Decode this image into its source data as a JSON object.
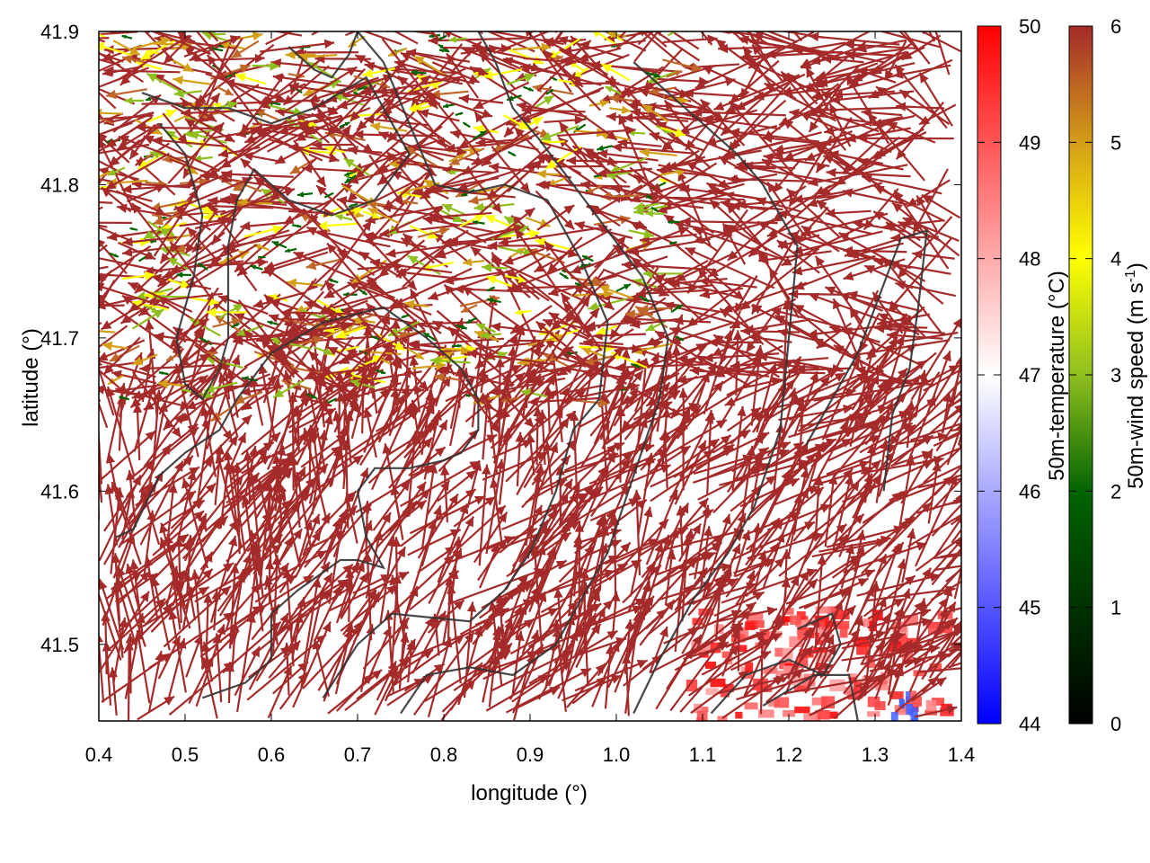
{
  "chart_data": {
    "type": "vector-field",
    "xlabel": "longitude (°)",
    "ylabel": "latitude (°)",
    "xlim": [
      0.4,
      1.4
    ],
    "ylim": [
      41.45,
      41.9
    ],
    "xticks": [
      "0.4",
      "0.5",
      "0.6",
      "0.7",
      "0.8",
      "0.9",
      "1.0",
      "1.1",
      "1.2",
      "1.3",
      "1.4"
    ],
    "yticks": [
      "41.5",
      "41.6",
      "41.7",
      "41.8",
      "41.9"
    ],
    "grid": false,
    "colorbars": [
      {
        "label": "50m-temperature (°C)",
        "range": [
          44,
          50
        ],
        "ticks": [
          "44",
          "45",
          "46",
          "47",
          "48",
          "49",
          "50"
        ],
        "colors": [
          "#0000ff",
          "#ffffff",
          "#ff0000"
        ]
      },
      {
        "label": "50m-wind speed (m s-1)",
        "label_main": "50m-wind speed (m s",
        "label_sup": "-1",
        "label_end": ")",
        "range": [
          0,
          6
        ],
        "ticks": [
          "0",
          "1",
          "2",
          "3",
          "4",
          "5",
          "6"
        ],
        "colors": [
          "#000000",
          "#006400",
          "#8fbf1f",
          "#ffff00",
          "#d4a017",
          "#c0682a",
          "#a52a2a"
        ]
      }
    ],
    "wind_field": {
      "dominant_color": "#a52a2a",
      "dominant_speed_ms": 6,
      "low_speed_region": "upper-left (lon 0.4–1.0, lat 41.65–41.9)",
      "low_speed_colors": [
        "#ffff00",
        "#8fbf1f",
        "#006400",
        "#d4a017"
      ]
    },
    "temperature_field": {
      "warm_patch": "lower-right (lon 1.08–1.38, lat 41.45–41.52)",
      "warm_color": "#ff3030",
      "cool_spot": "lon ~1.33, lat ~41.46",
      "cool_color": "#3050ff"
    },
    "contour_color": "#333333"
  }
}
